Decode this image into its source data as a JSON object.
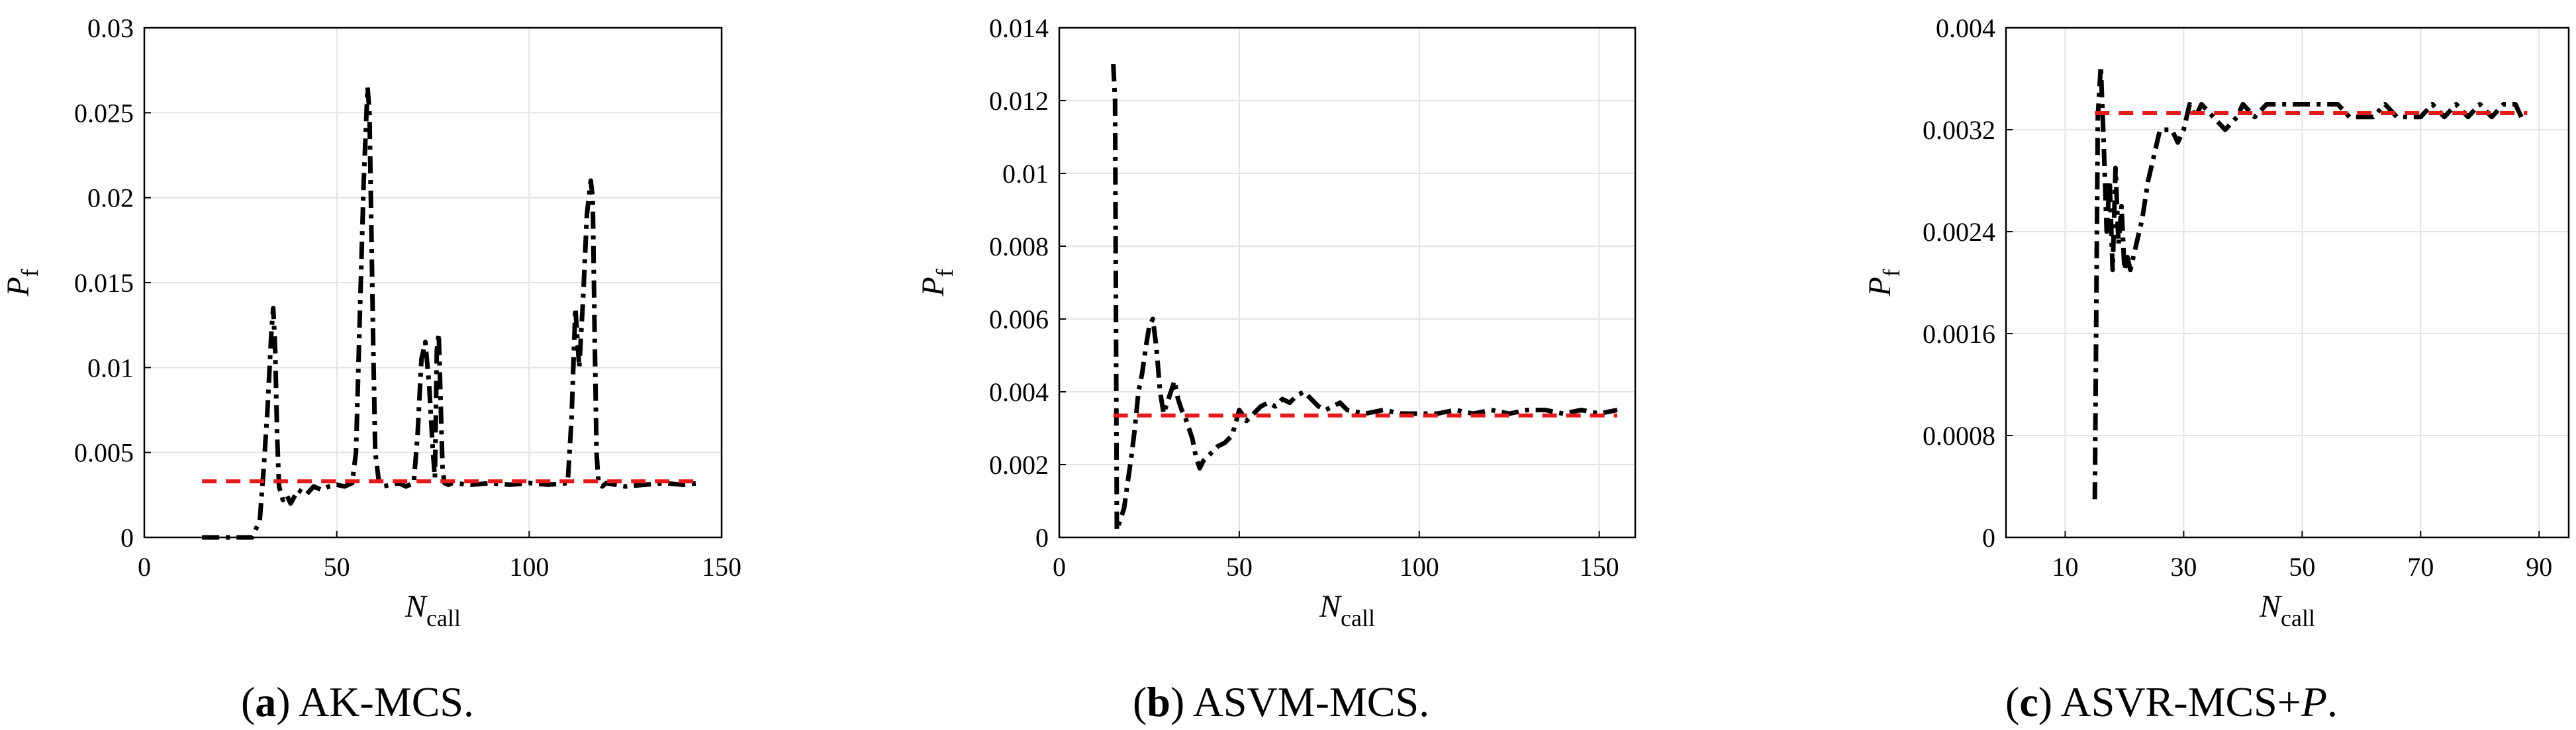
{
  "chart_data": [
    {
      "type": "line",
      "caption": {
        "letter": "a",
        "text": "AK-MCS."
      },
      "xlabel": {
        "main": "N",
        "sub": "call"
      },
      "ylabel": {
        "main": "P",
        "sub": "f"
      },
      "xlim": [
        0,
        150
      ],
      "ylim": [
        0,
        0.03
      ],
      "xticks": [
        "0",
        "50",
        "100",
        "150"
      ],
      "xtick_values": [
        0,
        50,
        100,
        150
      ],
      "yticks": [
        "0",
        "0.005",
        "0.01",
        "0.015",
        "0.02",
        "0.025",
        "0.03"
      ],
      "ytick_values": [
        0,
        0.005,
        0.01,
        0.015,
        0.02,
        0.025,
        0.03
      ],
      "grid": true,
      "series": [
        {
          "style": "black-dash-dot",
          "x": [
            15,
            22,
            28,
            30,
            31,
            32,
            33,
            33.5,
            34,
            34.5,
            35,
            36,
            37,
            38,
            40,
            42,
            44,
            46,
            48,
            50,
            52,
            54,
            55,
            56,
            57,
            58,
            58.5,
            59,
            59.5,
            60,
            61,
            62,
            64,
            66,
            68,
            70,
            71,
            72,
            73,
            74,
            75,
            75.5,
            76,
            76.5,
            77,
            77.5,
            78,
            79,
            80,
            85,
            90,
            95,
            100,
            105,
            110,
            111,
            112,
            113,
            114,
            115,
            116,
            116.5,
            117,
            117.5,
            118,
            119,
            120,
            125,
            130,
            135,
            140,
            144
          ],
          "y": [
            0,
            0,
            0,
            0.001,
            0.004,
            0.0075,
            0.012,
            0.0135,
            0.011,
            0.006,
            0.003,
            0.0022,
            0.0025,
            0.002,
            0.0028,
            0.0025,
            0.003,
            0.0028,
            0.003,
            0.0031,
            0.003,
            0.0032,
            0.005,
            0.013,
            0.021,
            0.0265,
            0.025,
            0.018,
            0.011,
            0.005,
            0.0032,
            0.003,
            0.0031,
            0.0032,
            0.003,
            0.0032,
            0.006,
            0.0105,
            0.0115,
            0.009,
            0.005,
            0.0035,
            0.011,
            0.012,
            0.008,
            0.004,
            0.0032,
            0.0031,
            0.0032,
            0.0031,
            0.0032,
            0.0031,
            0.0032,
            0.0031,
            0.0032,
            0.007,
            0.0135,
            0.01,
            0.014,
            0.019,
            0.021,
            0.02,
            0.012,
            0.005,
            0.0032,
            0.003,
            0.0032,
            0.003,
            0.0031,
            0.0032,
            0.0031,
            0.0032
          ]
        },
        {
          "style": "red-dashed",
          "x": [
            15,
            144
          ],
          "y": [
            0.0033,
            0.0033
          ]
        }
      ]
    },
    {
      "type": "line",
      "caption": {
        "letter": "b",
        "text": "ASVM-MCS."
      },
      "xlabel": {
        "main": "N",
        "sub": "call"
      },
      "ylabel": {
        "main": "P",
        "sub": "f"
      },
      "xlim": [
        0,
        160
      ],
      "ylim": [
        0,
        0.014
      ],
      "xticks": [
        "0",
        "50",
        "100",
        "150"
      ],
      "xtick_values": [
        0,
        50,
        100,
        150
      ],
      "yticks": [
        "0",
        "0.002",
        "0.004",
        "0.006",
        "0.008",
        "0.01",
        "0.012",
        "0.014"
      ],
      "ytick_values": [
        0,
        0.002,
        0.004,
        0.006,
        0.008,
        0.01,
        0.012,
        0.014
      ],
      "grid": true,
      "series": [
        {
          "style": "black-dash-dot",
          "x": [
            15,
            15.5,
            16,
            17,
            18,
            19,
            20,
            21,
            22,
            23,
            24,
            25,
            26,
            27,
            28,
            29,
            30,
            31,
            32,
            33,
            34,
            35,
            36,
            37,
            38,
            39,
            40,
            42,
            44,
            46,
            48,
            50,
            52,
            54,
            56,
            58,
            60,
            62,
            64,
            66,
            68,
            70,
            72,
            74,
            76,
            78,
            80,
            85,
            90,
            95,
            100,
            105,
            110,
            115,
            120,
            125,
            130,
            135,
            140,
            145,
            150,
            155
          ],
          "y": [
            0.013,
            0.012,
            0.0002,
            0.0005,
            0.0008,
            0.0015,
            0.0022,
            0.003,
            0.004,
            0.0045,
            0.0052,
            0.0058,
            0.006,
            0.0052,
            0.004,
            0.0034,
            0.0037,
            0.004,
            0.0043,
            0.0038,
            0.0035,
            0.0033,
            0.003,
            0.0027,
            0.0022,
            0.0019,
            0.0021,
            0.0023,
            0.0025,
            0.0026,
            0.0028,
            0.0035,
            0.0032,
            0.0034,
            0.0036,
            0.0037,
            0.0036,
            0.0038,
            0.0037,
            0.0039,
            0.004,
            0.0038,
            0.0036,
            0.0035,
            0.0036,
            0.0037,
            0.0035,
            0.0034,
            0.0035,
            0.0034,
            0.0034,
            0.0034,
            0.0035,
            0.0034,
            0.0035,
            0.0034,
            0.0035,
            0.0035,
            0.0034,
            0.0035,
            0.0034,
            0.0035
          ]
        },
        {
          "style": "red-dashed",
          "x": [
            15,
            155
          ],
          "y": [
            0.00335,
            0.00335
          ]
        }
      ]
    },
    {
      "type": "line",
      "caption": {
        "letter": "c",
        "text": "ASVR-MCS+",
        "italic": "P",
        "end": "."
      },
      "xlabel": {
        "main": "N",
        "sub": "call"
      },
      "ylabel": {
        "main": "P",
        "sub": "f"
      },
      "xlim": [
        0,
        95
      ],
      "ylim": [
        0,
        0.004
      ],
      "xticks": [
        "10",
        "30",
        "50",
        "70",
        "90"
      ],
      "xtick_values": [
        10,
        30,
        50,
        70,
        90
      ],
      "yticks": [
        "0",
        "0.0008",
        "0.0016",
        "0.0024",
        "0.0032",
        "0.004"
      ],
      "ytick_values": [
        0,
        0.0008,
        0.0016,
        0.0024,
        0.0032,
        0.004
      ],
      "grid": true,
      "series": [
        {
          "style": "black-dash-dot",
          "x": [
            15,
            15.5,
            16,
            16.5,
            17,
            17.5,
            18,
            18.5,
            19,
            19.5,
            20,
            20.5,
            21,
            22,
            23,
            24,
            25,
            26,
            27,
            28,
            29,
            30,
            31,
            32,
            33,
            35,
            37,
            39,
            40,
            42,
            44,
            46,
            48,
            50,
            52,
            54,
            56,
            58,
            60,
            62,
            64,
            66,
            68,
            70,
            72,
            74,
            76,
            78,
            80,
            82,
            84,
            86,
            87
          ],
          "y": [
            0.0003,
            0.0033,
            0.0037,
            0.0031,
            0.0024,
            0.0028,
            0.0021,
            0.0029,
            0.0023,
            0.0026,
            0.0021,
            0.0022,
            0.0021,
            0.0023,
            0.0025,
            0.0028,
            0.003,
            0.0032,
            0.0032,
            0.0032,
            0.0031,
            0.0032,
            0.0034,
            0.0033,
            0.0034,
            0.0033,
            0.0032,
            0.0033,
            0.0034,
            0.0033,
            0.0034,
            0.0034,
            0.0034,
            0.0034,
            0.0034,
            0.0034,
            0.0034,
            0.0033,
            0.0033,
            0.0033,
            0.0034,
            0.0033,
            0.0033,
            0.0033,
            0.0034,
            0.0033,
            0.0034,
            0.0033,
            0.0034,
            0.0033,
            0.0034,
            0.0034,
            0.0033
          ]
        },
        {
          "style": "red-dashed",
          "x": [
            15,
            88
          ],
          "y": [
            0.00333,
            0.00333
          ]
        }
      ]
    }
  ]
}
